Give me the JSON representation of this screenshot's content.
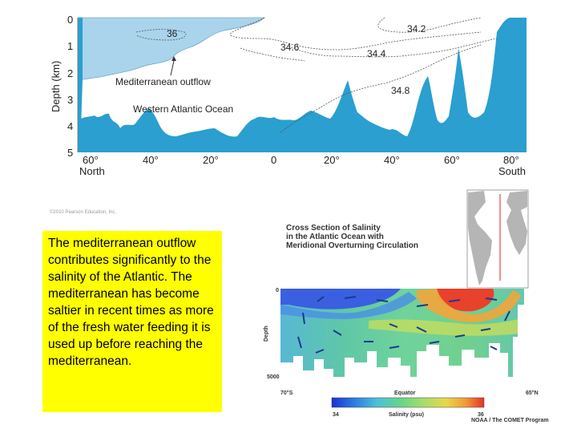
{
  "top_diagram": {
    "y_axis_label": "Depth (km)",
    "y_ticks": [
      "0",
      "1",
      "2",
      "3",
      "4",
      "5"
    ],
    "x_ticks": [
      "60°",
      "40°",
      "20°",
      "0",
      "20°",
      "40°",
      "60°",
      "80°"
    ],
    "x_end_labels": {
      "left": "North",
      "right": "South"
    },
    "isohaline_labels": [
      "36",
      "34.2",
      "34.6",
      "34.4",
      "34.8"
    ],
    "annotations": [
      "Mediterranean outflow",
      "Western Atlantic Ocean"
    ],
    "copyright": "©2010 Pearson Education, Inc.",
    "colors": {
      "water": "#a9d4ec",
      "seafloor": "#2a9fd0",
      "isoline": "#555555"
    }
  },
  "note_text": "The mediterranean outflow contributes significantly to the salinity of the Atlantic. The mediterranean has become saltier in recent times as more of the fresh water feeding it is used up before reaching the mediterranean.",
  "note_color": "#ffff00",
  "cross_section": {
    "title_lines": [
      "Cross Section of Salinity",
      "in the Atlantic Ocean with",
      "Meridional Overturning Circulation"
    ],
    "y_axis_label": "Depth",
    "y_ticks": [
      "0",
      "5000"
    ],
    "x_ticks": [
      "70°S",
      "Equator",
      "65°N"
    ],
    "colorbar_label": "Salinity (psu)",
    "colorbar_min": "34",
    "colorbar_max": "36",
    "credit": "NOAA / The COMET Program",
    "colorbar_colors": [
      "#1b2fd6",
      "#2f7de0",
      "#4fc0d8",
      "#68d48a",
      "#a6dd6a",
      "#e8d84a",
      "#f09a3a",
      "#e5302a"
    ]
  }
}
